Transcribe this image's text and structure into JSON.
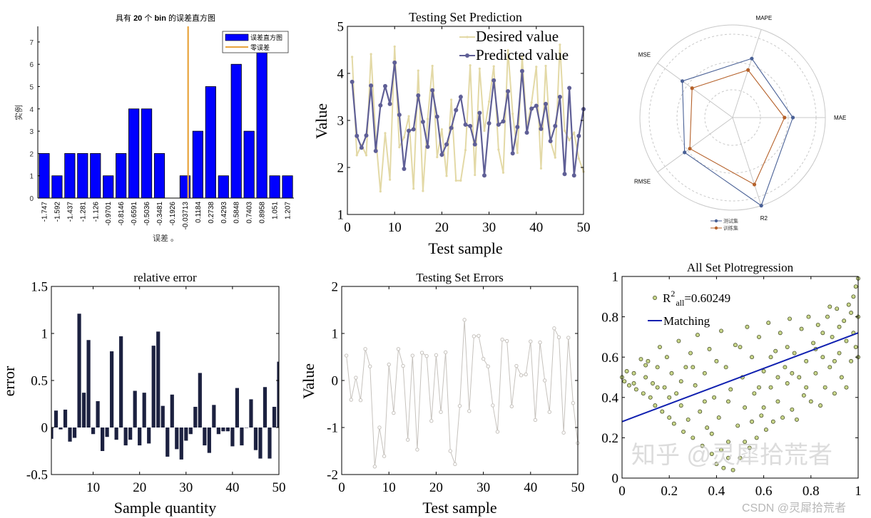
{
  "chart_data": [
    {
      "type": "bar",
      "title_parts": [
        "具有 ",
        "20",
        " 个 ",
        "bin",
        " 的误差直方图"
      ],
      "xlabel": "误差 。",
      "ylabel": "实例",
      "categories": [
        "-1.747",
        "-1.592",
        "-1.437",
        "-1.281",
        "-1.126",
        "-0.9701",
        "-0.8146",
        "-0.6591",
        "-0.5036",
        "-0.3481",
        "-0.1926",
        "-0.03713",
        "0.1184",
        "0.2738",
        "0.4293",
        "0.5848",
        "0.7403",
        "0.8958",
        "1.051",
        "1.207"
      ],
      "values": [
        2,
        1,
        2,
        2,
        2,
        1,
        2,
        4,
        4,
        2,
        0,
        1,
        3,
        5,
        1,
        6,
        3,
        7,
        1,
        1
      ],
      "zero_error_x": 0,
      "ylim": [
        0,
        7.7
      ],
      "y_ticks": [
        "0",
        "1",
        "2",
        "3",
        "4",
        "5",
        "6",
        "7"
      ],
      "legend": [
        "误差直方图",
        "零误差"
      ],
      "legend_placement": "top-right",
      "colors": {
        "bar": "#0000ff",
        "zero_line": "#e8a33c"
      }
    },
    {
      "type": "line",
      "title": "Testing Set Prediction",
      "xlabel": "Test sample",
      "ylabel": "Value",
      "xlim": [
        0,
        50
      ],
      "ylim": [
        1,
        5
      ],
      "x_ticks": [
        "0",
        "10",
        "20",
        "30",
        "40",
        "50"
      ],
      "y_ticks": [
        "1",
        "2",
        "3",
        "4",
        "5"
      ],
      "legend_placement": "top-right",
      "series": [
        {
          "name": "Desired value",
          "color": "#e3d9a6",
          "values": [
            4.35,
            2.26,
            2.48,
            2.26,
            4.41,
            2.65,
            1.49,
            2.73,
            1.74,
            4.57,
            2.43,
            2.64,
            3.09,
            1.55,
            4.06,
            1.5,
            3.03,
            4.16,
            2.22,
            2.81,
            1.82,
            3.44,
            1.72,
            1.72,
            2.37,
            4.17,
            1.84,
            4.1,
            2.78,
            3.4,
            4.15,
            2.38,
            1.89,
            4.49,
            3.14,
            2.31,
            4.36,
            2.85,
            3.38,
            4.14,
            1.98,
            4.16,
            2.56,
            2.21,
            4.61,
            2.78,
            2.58,
            2.74,
            2.19,
            1.91
          ]
        },
        {
          "name": "Predicted value",
          "color": "#5f5f96",
          "values": [
            3.82,
            2.67,
            2.42,
            2.68,
            3.74,
            2.35,
            3.32,
            3.73,
            3.35,
            4.23,
            3.12,
            1.97,
            2.78,
            2.81,
            3.53,
            2.97,
            2.44,
            3.64,
            3.08,
            2.27,
            2.49,
            2.84,
            3.22,
            3.5,
            2.91,
            2.88,
            2.49,
            3.16,
            1.83,
            2.94,
            3.85,
            2.91,
            2.98,
            3.62,
            2.3,
            2.86,
            4.05,
            2.74,
            3.25,
            3.31,
            2.82,
            3.35,
            2.56,
            2.88,
            3.5,
            1.86,
            3.69,
            1.83,
            2.67,
            3.24
          ]
        }
      ]
    },
    {
      "type": "radar",
      "axes": [
        "MAE",
        "MAPE",
        "MSE",
        "RMSE",
        "R2"
      ],
      "rmax": 1,
      "series": [
        {
          "name": "测试集",
          "color": "#4a6196",
          "values": [
            0.65,
            0.67,
            0.67,
            0.64,
            1.0
          ]
        },
        {
          "name": "训练集",
          "color": "#b5612a",
          "values": [
            0.56,
            0.54,
            0.54,
            0.57,
            0.76
          ]
        }
      ],
      "legend_placement": "bottom"
    },
    {
      "type": "bar",
      "title": "relative error",
      "xlabel": "Sample quantity",
      "ylabel": "error",
      "xlim": [
        1,
        50
      ],
      "ylim": [
        -0.5,
        1.5
      ],
      "x_ticks": [
        "10",
        "20",
        "30",
        "40",
        "50"
      ],
      "y_ticks": [
        "-0.5",
        "0",
        "0.5",
        "1",
        "1.5"
      ],
      "color": "#1c2140",
      "values": [
        -0.12,
        0.18,
        -0.02,
        0.19,
        -0.15,
        -0.11,
        1.21,
        0.37,
        0.93,
        -0.07,
        0.28,
        -0.25,
        -0.1,
        0.81,
        -0.13,
        0.97,
        -0.19,
        -0.13,
        0.39,
        -0.19,
        0.37,
        -0.17,
        0.87,
        1.02,
        0.23,
        -0.31,
        0.35,
        -0.23,
        -0.34,
        -0.14,
        -0.07,
        0.22,
        0.58,
        -0.19,
        -0.27,
        0.24,
        -0.07,
        -0.04,
        -0.04,
        -0.2,
        0.42,
        -0.19,
        0.0,
        0.3,
        -0.24,
        -0.33,
        0.43,
        -0.33,
        0.22,
        0.7
      ]
    },
    {
      "type": "line",
      "title": "Testing Set Errors",
      "xlabel": "Test sample",
      "ylabel": "Value",
      "xlim": [
        0,
        50
      ],
      "ylim": [
        -2,
        2
      ],
      "x_ticks": [
        "0",
        "10",
        "20",
        "30",
        "40",
        "50"
      ],
      "y_ticks": [
        "-2",
        "-1",
        "0",
        "1",
        "2"
      ],
      "color": "#c6c2bd",
      "values": [
        0.53,
        -0.41,
        0.06,
        -0.42,
        0.67,
        0.3,
        -1.83,
        -1.0,
        -1.61,
        0.34,
        -0.69,
        0.67,
        0.31,
        -1.26,
        0.53,
        -1.47,
        0.59,
        0.52,
        -0.86,
        0.54,
        -0.67,
        0.6,
        -1.5,
        -1.78,
        -0.54,
        1.29,
        -0.65,
        0.94,
        0.95,
        0.46,
        0.3,
        -0.53,
        -1.09,
        0.87,
        0.84,
        -0.55,
        0.31,
        0.11,
        0.13,
        0.83,
        -0.84,
        0.81,
        0.0,
        -0.67,
        1.11,
        0.92,
        -1.11,
        0.91,
        -0.48,
        -1.33
      ]
    },
    {
      "type": "scatter",
      "title": "All Set Plotregression",
      "xlim": [
        0,
        1
      ],
      "ylim": [
        0,
        1
      ],
      "x_ticks": [
        "0",
        "0.2",
        "0.4",
        "0.6",
        "0.8",
        "1"
      ],
      "y_ticks": [
        "0",
        "0.2",
        "0.4",
        "0.6",
        "0.8",
        "1"
      ],
      "legend": {
        "base": "R",
        "sup": "2",
        "sub": "all",
        "value": "=0.60249",
        "line_label": "Matching"
      },
      "legend_placement": "top-left",
      "fit": {
        "intercept": 0.28,
        "slope": 0.44,
        "color": "#1020b0"
      },
      "marker_color": "#c8d68a",
      "points": [
        [
          0.0,
          0.5
        ],
        [
          0.01,
          0.48
        ],
        [
          0.02,
          0.53
        ],
        [
          0.03,
          0.46
        ],
        [
          0.05,
          0.52
        ],
        [
          0.06,
          0.44
        ],
        [
          0.08,
          0.59
        ],
        [
          0.09,
          0.42
        ],
        [
          0.1,
          0.5
        ],
        [
          0.11,
          0.58
        ],
        [
          0.12,
          0.4
        ],
        [
          0.13,
          0.47
        ],
        [
          0.14,
          0.36
        ],
        [
          0.15,
          0.55
        ],
        [
          0.16,
          0.65
        ],
        [
          0.17,
          0.33
        ],
        [
          0.18,
          0.45
        ],
        [
          0.19,
          0.6
        ],
        [
          0.2,
          0.3
        ],
        [
          0.21,
          0.52
        ],
        [
          0.22,
          0.27
        ],
        [
          0.23,
          0.42
        ],
        [
          0.24,
          0.68
        ],
        [
          0.25,
          0.36
        ],
        [
          0.26,
          0.23
        ],
        [
          0.27,
          0.55
        ],
        [
          0.28,
          0.29
        ],
        [
          0.29,
          0.62
        ],
        [
          0.3,
          0.2
        ],
        [
          0.31,
          0.46
        ],
        [
          0.32,
          0.71
        ],
        [
          0.33,
          0.33
        ],
        [
          0.34,
          0.16
        ],
        [
          0.35,
          0.52
        ],
        [
          0.36,
          0.25
        ],
        [
          0.37,
          0.64
        ],
        [
          0.38,
          0.12
        ],
        [
          0.39,
          0.4
        ],
        [
          0.4,
          0.07
        ],
        [
          0.41,
          0.3
        ],
        [
          0.42,
          0.73
        ],
        [
          0.43,
          0.05
        ],
        [
          0.44,
          0.55
        ],
        [
          0.45,
          0.18
        ],
        [
          0.46,
          0.44
        ],
        [
          0.47,
          0.04
        ],
        [
          0.48,
          0.66
        ],
        [
          0.49,
          0.26
        ],
        [
          0.5,
          0.1
        ],
        [
          0.51,
          0.5
        ],
        [
          0.52,
          0.35
        ],
        [
          0.53,
          0.75
        ],
        [
          0.54,
          0.15
        ],
        [
          0.55,
          0.6
        ],
        [
          0.56,
          0.42
        ],
        [
          0.57,
          0.2
        ],
        [
          0.58,
          0.7
        ],
        [
          0.59,
          0.31
        ],
        [
          0.6,
          0.53
        ],
        [
          0.61,
          0.24
        ],
        [
          0.62,
          0.77
        ],
        [
          0.63,
          0.45
        ],
        [
          0.64,
          0.28
        ],
        [
          0.65,
          0.63
        ],
        [
          0.66,
          0.38
        ],
        [
          0.67,
          0.72
        ],
        [
          0.68,
          0.3
        ],
        [
          0.69,
          0.55
        ],
        [
          0.7,
          0.47
        ],
        [
          0.71,
          0.79
        ],
        [
          0.72,
          0.34
        ],
        [
          0.73,
          0.62
        ],
        [
          0.74,
          0.29
        ],
        [
          0.75,
          0.5
        ],
        [
          0.76,
          0.74
        ],
        [
          0.77,
          0.41
        ],
        [
          0.78,
          0.58
        ],
        [
          0.79,
          0.8
        ],
        [
          0.8,
          0.38
        ],
        [
          0.81,
          0.67
        ],
        [
          0.82,
          0.52
        ],
        [
          0.83,
          0.76
        ],
        [
          0.84,
          0.36
        ],
        [
          0.85,
          0.6
        ],
        [
          0.86,
          0.45
        ],
        [
          0.87,
          0.8
        ],
        [
          0.88,
          0.55
        ],
        [
          0.89,
          0.7
        ],
        [
          0.9,
          0.42
        ],
        [
          0.91,
          0.84
        ],
        [
          0.92,
          0.62
        ],
        [
          0.93,
          0.5
        ],
        [
          0.94,
          0.78
        ],
        [
          0.95,
          0.68
        ],
        [
          0.96,
          0.86
        ],
        [
          0.97,
          0.58
        ],
        [
          0.98,
          0.9
        ],
        [
          0.98,
          0.72
        ],
        [
          0.99,
          0.95
        ],
        [
          0.99,
          0.65
        ],
        [
          1.0,
          0.99
        ],
        [
          1.0,
          0.8
        ],
        [
          1.0,
          0.6
        ],
        [
          0.97,
          0.82
        ],
        [
          0.95,
          0.45
        ],
        [
          0.92,
          0.75
        ],
        [
          0.88,
          0.85
        ],
        [
          0.85,
          0.72
        ],
        [
          0.78,
          0.45
        ],
        [
          0.7,
          0.65
        ],
        [
          0.66,
          0.5
        ],
        [
          0.6,
          0.35
        ],
        [
          0.55,
          0.28
        ],
        [
          0.5,
          0.65
        ],
        [
          0.45,
          0.38
        ],
        [
          0.4,
          0.58
        ],
        [
          0.35,
          0.38
        ],
        [
          0.3,
          0.55
        ],
        [
          0.25,
          0.48
        ],
        [
          0.2,
          0.4
        ],
        [
          0.15,
          0.45
        ],
        [
          0.1,
          0.56
        ],
        [
          0.05,
          0.47
        ],
        [
          0.45,
          0.1
        ],
        [
          0.42,
          0.14
        ],
        [
          0.38,
          0.22
        ],
        [
          0.52,
          0.18
        ],
        [
          0.58,
          0.45
        ],
        [
          0.63,
          0.6
        ],
        [
          0.72,
          0.52
        ],
        [
          0.82,
          0.64
        ],
        [
          0.9,
          0.58
        ]
      ]
    }
  ],
  "watermarks": [
    "知乎 @灵犀拾荒者",
    "CSDN @灵犀拾荒者"
  ]
}
